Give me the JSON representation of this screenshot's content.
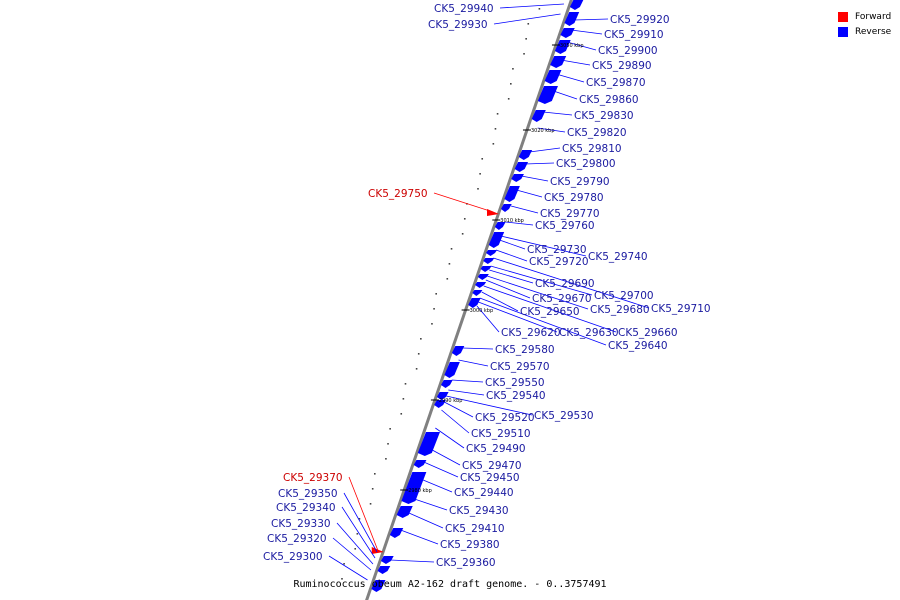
{
  "caption": "Ruminococcus obeum A2-162 draft genome. - 0..3757491",
  "colors": {
    "forward": "#ff0000",
    "reverse": "#0000ff",
    "label_forward": "#cc0000",
    "label_reverse": "#1a1aa0",
    "backbone": "#808080"
  },
  "legend": [
    {
      "label": "Forward",
      "color": "#ff0000"
    },
    {
      "label": "Reverse",
      "color": "#0000ff"
    }
  ],
  "ticks": [
    "3050 kbp",
    "3020 kbp",
    "3010 kbp",
    "3000 kbp",
    "2990 kbp",
    "2980 kbp"
  ],
  "genes": [
    {
      "id": "CK5_29940",
      "strand": "reverse"
    },
    {
      "id": "CK5_29930",
      "strand": "reverse"
    },
    {
      "id": "CK5_29920",
      "strand": "reverse"
    },
    {
      "id": "CK5_29910",
      "strand": "reverse"
    },
    {
      "id": "CK5_29900",
      "strand": "reverse"
    },
    {
      "id": "CK5_29890",
      "strand": "reverse"
    },
    {
      "id": "CK5_29870",
      "strand": "reverse"
    },
    {
      "id": "CK5_29860",
      "strand": "reverse"
    },
    {
      "id": "CK5_29830",
      "strand": "reverse"
    },
    {
      "id": "CK5_29820",
      "strand": "reverse"
    },
    {
      "id": "CK5_29810",
      "strand": "reverse"
    },
    {
      "id": "CK5_29800",
      "strand": "reverse"
    },
    {
      "id": "CK5_29790",
      "strand": "reverse"
    },
    {
      "id": "CK5_29780",
      "strand": "reverse"
    },
    {
      "id": "CK5_29770",
      "strand": "reverse"
    },
    {
      "id": "CK5_29760",
      "strand": "reverse"
    },
    {
      "id": "CK5_29750",
      "strand": "forward"
    },
    {
      "id": "CK5_29740",
      "strand": "reverse"
    },
    {
      "id": "CK5_29730",
      "strand": "reverse"
    },
    {
      "id": "CK5_29720",
      "strand": "reverse"
    },
    {
      "id": "CK5_29710",
      "strand": "reverse"
    },
    {
      "id": "CK5_29700",
      "strand": "reverse"
    },
    {
      "id": "CK5_29690",
      "strand": "reverse"
    },
    {
      "id": "CK5_29680",
      "strand": "reverse"
    },
    {
      "id": "CK5_29670",
      "strand": "reverse"
    },
    {
      "id": "CK5_29660",
      "strand": "reverse"
    },
    {
      "id": "CK5_29650",
      "strand": "reverse"
    },
    {
      "id": "CK5_29640",
      "strand": "reverse"
    },
    {
      "id": "CK5_29630",
      "strand": "reverse"
    },
    {
      "id": "CK5_29620",
      "strand": "reverse"
    },
    {
      "id": "CK5_29580",
      "strand": "reverse"
    },
    {
      "id": "CK5_29570",
      "strand": "reverse"
    },
    {
      "id": "CK5_29550",
      "strand": "reverse"
    },
    {
      "id": "CK5_29540",
      "strand": "reverse"
    },
    {
      "id": "CK5_29530",
      "strand": "reverse"
    },
    {
      "id": "CK5_29520",
      "strand": "reverse"
    },
    {
      "id": "CK5_29510",
      "strand": "reverse"
    },
    {
      "id": "CK5_29490",
      "strand": "reverse"
    },
    {
      "id": "CK5_29470",
      "strand": "reverse"
    },
    {
      "id": "CK5_29450",
      "strand": "reverse"
    },
    {
      "id": "CK5_29440",
      "strand": "reverse"
    },
    {
      "id": "CK5_29430",
      "strand": "reverse"
    },
    {
      "id": "CK5_29410",
      "strand": "reverse"
    },
    {
      "id": "CK5_29380",
      "strand": "reverse"
    },
    {
      "id": "CK5_29370",
      "strand": "forward"
    },
    {
      "id": "CK5_29360",
      "strand": "reverse"
    },
    {
      "id": "CK5_29350",
      "strand": "reverse"
    },
    {
      "id": "CK5_29340",
      "strand": "reverse"
    },
    {
      "id": "CK5_29330",
      "strand": "reverse"
    },
    {
      "id": "CK5_29320",
      "strand": "reverse"
    },
    {
      "id": "CK5_29300",
      "strand": "reverse"
    }
  ]
}
